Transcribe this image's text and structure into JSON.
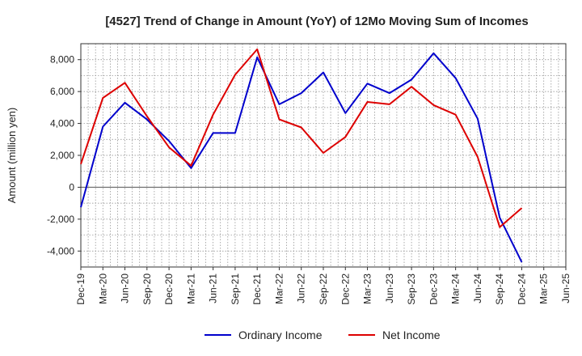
{
  "chart_data": {
    "type": "line",
    "title": "[4527]  Trend of Change in Amount (YoY) of 12Mo Moving Sum of Incomes",
    "xlabel": "",
    "ylabel": "Amount (million yen)",
    "ylim": [
      -5000,
      9000
    ],
    "yticks": [
      -4000,
      -2000,
      0,
      2000,
      4000,
      6000,
      8000
    ],
    "ytick_labels": [
      "-4,000",
      "-2,000",
      "0",
      "2,000",
      "4,000",
      "6,000",
      "8,000"
    ],
    "x_tick_labels": [
      "Dec-19",
      "Mar-20",
      "Jun-20",
      "Sep-20",
      "Dec-20",
      "Mar-21",
      "Jun-21",
      "Sep-21",
      "Dec-21",
      "Mar-22",
      "Jun-22",
      "Sep-22",
      "Dec-22",
      "Mar-23",
      "Jun-23",
      "Sep-23",
      "Dec-23",
      "Mar-24",
      "Jun-24",
      "Sep-24",
      "Dec-24",
      "Mar-25",
      "Jun-25"
    ],
    "grid": true,
    "legend_position": "bottom",
    "series": [
      {
        "name": "Ordinary Income",
        "color": "#0000cc",
        "values": [
          -1250,
          3800,
          5300,
          4250,
          2900,
          1200,
          3400,
          3400,
          8150,
          5200,
          5900,
          7200,
          4650,
          6500,
          5900,
          6750,
          8400,
          6850,
          4300,
          -1900,
          -4700
        ]
      },
      {
        "name": "Net Income",
        "color": "#dd0000",
        "values": [
          1450,
          5600,
          6550,
          4450,
          2500,
          1350,
          4550,
          7050,
          8650,
          4250,
          3750,
          2150,
          3150,
          5350,
          5200,
          6300,
          5150,
          4550,
          1900,
          -2500,
          -1300
        ]
      }
    ]
  }
}
